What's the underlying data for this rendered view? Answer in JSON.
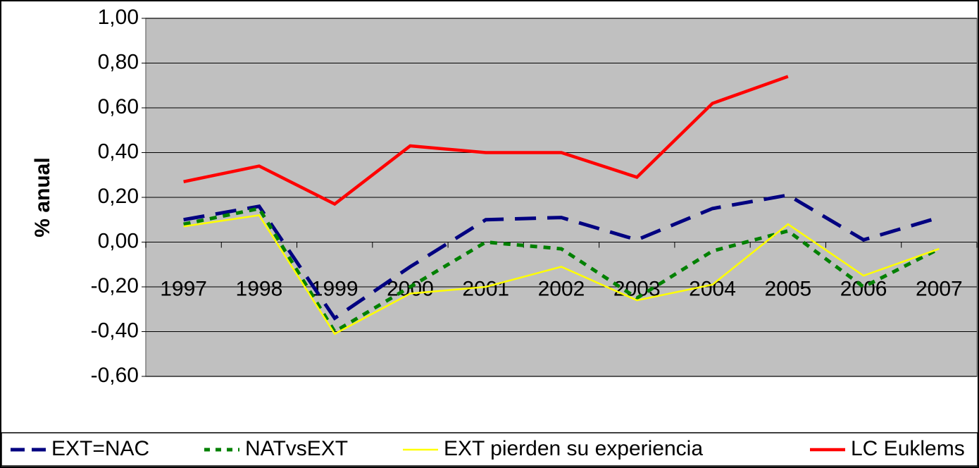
{
  "chart_data": {
    "type": "line",
    "y_label": "% anual",
    "categories": [
      "1997",
      "1998",
      "1999",
      "2000",
      "2001",
      "2002",
      "2003",
      "2004",
      "2005",
      "2006",
      "2007"
    ],
    "series": [
      {
        "name": "EXT=NAC",
        "color": "#000080",
        "dash": "30 16",
        "width": 5,
        "values": [
          0.1,
          0.16,
          -0.34,
          -0.11,
          0.1,
          0.11,
          0.01,
          0.15,
          0.21,
          0.01,
          0.11
        ]
      },
      {
        "name": "NATvsEXT",
        "color": "#008000",
        "dash": "10 9",
        "width": 5,
        "values": [
          0.08,
          0.15,
          -0.4,
          -0.2,
          0.0,
          -0.03,
          -0.25,
          -0.04,
          0.05,
          -0.2,
          -0.03
        ]
      },
      {
        "name": "EXT pierden su experiencia",
        "color": "#ffff00",
        "dash": "none",
        "width": 2.5,
        "values": [
          0.07,
          0.12,
          -0.41,
          -0.23,
          -0.2,
          -0.11,
          -0.26,
          -0.19,
          0.08,
          -0.15,
          -0.03
        ]
      },
      {
        "name": "LC Euklems",
        "color": "#ff0000",
        "dash": "none",
        "width": 4.5,
        "values": [
          0.27,
          0.34,
          0.17,
          0.43,
          0.4,
          0.4,
          0.29,
          0.62,
          0.74,
          null,
          null
        ]
      }
    ],
    "ylim": [
      -0.6,
      1.0
    ],
    "yticks": [
      {
        "value": -0.6,
        "label": "-0,60"
      },
      {
        "value": -0.4,
        "label": "-0,40"
      },
      {
        "value": -0.2,
        "label": "-0,20"
      },
      {
        "value": 0,
        "label": "0,00"
      },
      {
        "value": 0.2,
        "label": "0,20"
      },
      {
        "value": 0.4,
        "label": "0,40"
      },
      {
        "value": 0.6,
        "label": "0,60"
      },
      {
        "value": 0.8,
        "label": "0,80"
      },
      {
        "value": 1.0,
        "label": "1,00"
      }
    ],
    "grid": true,
    "background": "#c0c0c0",
    "legend": "bottom"
  }
}
